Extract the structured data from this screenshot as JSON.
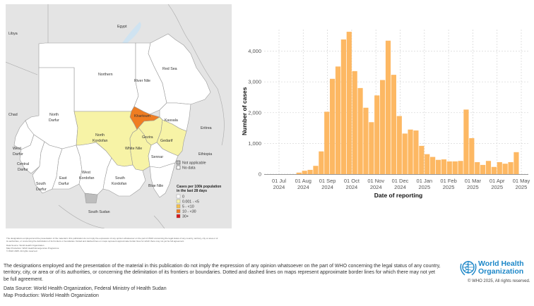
{
  "map": {
    "countries": [
      "Libya",
      "Egypt",
      "Chad",
      "Eritrea",
      "Ethiopia",
      "South Sudan"
    ],
    "states": [
      {
        "name": "Northern",
        "category": "0"
      },
      {
        "name": "River Nile",
        "category": "0"
      },
      {
        "name": "Red Sea",
        "category": "0"
      },
      {
        "name": "North Darfur",
        "category": "0"
      },
      {
        "name": "Khartoum",
        "category": "10 - <30"
      },
      {
        "name": "Kassala",
        "category": "0"
      },
      {
        "name": "North Kordofan",
        "category": "0.001 - <5"
      },
      {
        "name": "Gezira",
        "category": "0.001 - <5"
      },
      {
        "name": "Gedarif",
        "category": "0.001 - <5"
      },
      {
        "name": "White Nile",
        "category": "0.001 - <5"
      },
      {
        "name": "West Darfur",
        "category": "0"
      },
      {
        "name": "Central Darfur",
        "category": "0"
      },
      {
        "name": "South Darfur",
        "category": "0"
      },
      {
        "name": "East Darfur",
        "category": "0"
      },
      {
        "name": "West Kordofan",
        "category": "0"
      },
      {
        "name": "South Kordofan",
        "category": "0"
      },
      {
        "name": "Sennar",
        "category": "0"
      },
      {
        "name": "Blue Nile",
        "category": "0"
      }
    ],
    "legend": {
      "special": [
        {
          "label": "Not applicable",
          "color": "#bdbdbd"
        },
        {
          "label": "No data",
          "color": "#ffffff"
        }
      ],
      "title_line1": "Cases per 100k population",
      "title_line2": "in the last 28 days",
      "classes": [
        {
          "label": "0",
          "color": "#ffffff"
        },
        {
          "label": "0.001 - <5",
          "color": "#f7f3a6"
        },
        {
          "label": "5 - <10",
          "color": "#f5c04a"
        },
        {
          "label": "10 - <30",
          "color": "#ef7d22"
        },
        {
          "label": "30+",
          "color": "#d7191c"
        }
      ]
    },
    "disclaimer": [
      "The designations employed and the presentation of the material in this publication do not imply the expression of any opinion whatsoever on the part of WHO concerning the legal status of any country, territory, city or area or of its authorities, or concerning the delimitation of its frontiers or boundaries. Dotted and dashed lines on maps represent approximate border lines for which there may not yet be full agreement.",
      "Data Source: World Health Organization",
      "Map Production: WHO Health Emergencies Programme",
      "© WHO 2025. All rights reserved."
    ]
  },
  "chart_data": {
    "type": "bar",
    "title": "",
    "xlabel": "Date of reporting",
    "ylabel": "Number of cases",
    "ylim": [
      0,
      4700
    ],
    "yticks": [
      0,
      1000,
      2000,
      3000,
      4000
    ],
    "ytick_labels": [
      "0",
      "1,000",
      "2,000",
      "3,000",
      "4,000"
    ],
    "xticks": [
      {
        "line1": "01 Jul",
        "line2": "2024"
      },
      {
        "line1": "01 Aug",
        "line2": "2024"
      },
      {
        "line1": "01 Sep",
        "line2": "2024"
      },
      {
        "line1": "01 Oct",
        "line2": "2024"
      },
      {
        "line1": "01 Nov",
        "line2": "2024"
      },
      {
        "line1": "01 Dec",
        "line2": "2024"
      },
      {
        "line1": "01 Jan",
        "line2": "2025"
      },
      {
        "line1": "01 Feb",
        "line2": "2025"
      },
      {
        "line1": "01 Mar",
        "line2": "2025"
      },
      {
        "line1": "01 Apr",
        "line2": "2025"
      },
      {
        "line1": "01 May",
        "line2": "2025"
      }
    ],
    "grid": true,
    "bar_color": "#fdb863",
    "bin": "weekly",
    "first_week_offset_months": 0.72,
    "values": [
      50,
      110,
      140,
      270,
      740,
      2030,
      3100,
      3500,
      4380,
      4630,
      3350,
      2800,
      2160,
      1690,
      2560,
      3060,
      4340,
      3230,
      1890,
      1320,
      1450,
      1420,
      920,
      650,
      560,
      465,
      480,
      415,
      415,
      430,
      2100,
      1170,
      390,
      300,
      430,
      235,
      390,
      340,
      390,
      715
    ]
  },
  "footer": {
    "disclaimer": "The designations employed and the presentation of the material in this publication do not imply the expression of any opinion whatsoever on the part of WHO concerning the legal status of any country, territory, city, or area or of its authorities, or concerning the delimitation of its frontiers or boundaries. Dotted and dashed lines on maps represent approximate border lines for which there may not yet be full agreement.",
    "data_source": "Data Source: World Health Organization, Federal Ministry of Health Sudan",
    "map_production": "Map Production: World Health Organization"
  },
  "branding": {
    "org_line1": "World Health",
    "org_line2": "Organization",
    "copyright": "© WHO 2025, All rights reserved.",
    "brand_color": "#1d87c8"
  }
}
